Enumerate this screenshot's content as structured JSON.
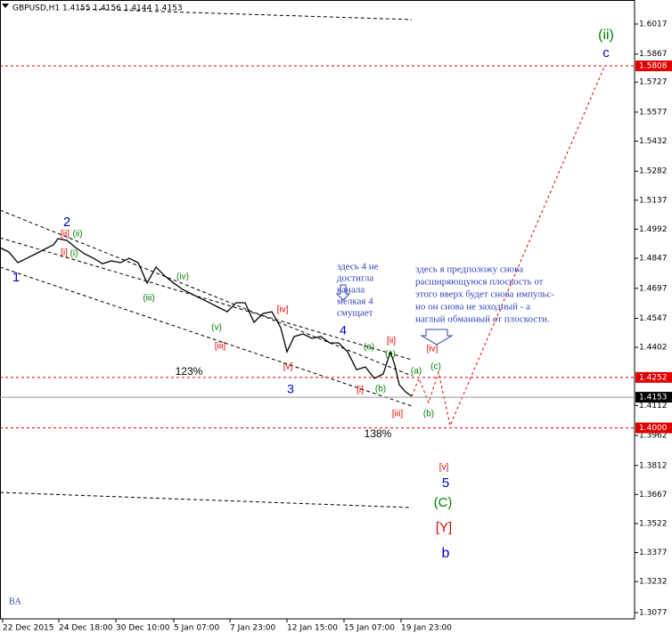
{
  "chart_data": {
    "type": "line",
    "title": "GBPUSD,H1  1.4155 1.4156 1.4144 1.4153",
    "watermark": "BA",
    "xlim": [
      0,
      712
    ],
    "xticks": [
      {
        "value": 3,
        "label": "22 Dec 2015"
      },
      {
        "value": 66,
        "label": "24 Dec 18:00"
      },
      {
        "value": 130,
        "label": "30 Dec 10:00"
      },
      {
        "value": 195,
        "label": "5 Jan 07:00"
      },
      {
        "value": 258,
        "label": "7 Jan 23:00"
      },
      {
        "value": 322,
        "label": "12 Jan 15:00"
      },
      {
        "value": 386,
        "label": "15 Jan 07:00"
      },
      {
        "value": 450,
        "label": "19 Jan 23:00"
      }
    ],
    "ylim": [
      1.3046,
      1.6137
    ],
    "yticks": [
      1.6017,
      1.5867,
      1.5727,
      1.5577,
      1.5432,
      1.5282,
      1.5137,
      1.4992,
      1.4847,
      1.4697,
      1.4547,
      1.4402,
      1.4112,
      1.3962,
      1.3812,
      1.3667,
      1.3522,
      1.3377,
      1.3232,
      1.3077
    ],
    "levels": [
      {
        "value": 1.5808,
        "color": "#e00000"
      },
      {
        "value": 1.4252,
        "color": "#e00000"
      },
      {
        "value": 1.4153,
        "color": "#999999"
      },
      {
        "value": {
          "value": 1.4,
          "label": "1.4000"
        },
        "color": "#e00000"
      }
    ],
    "series": [
      {
        "name": "GBPUSD",
        "color": "#000000",
        "x": [
          0,
          10,
          20,
          30,
          40,
          50,
          60,
          65,
          75,
          85,
          95,
          105,
          115,
          125,
          135,
          145,
          155,
          165,
          175,
          185,
          195,
          205,
          215,
          225,
          235,
          245,
          255,
          265,
          275,
          285,
          295,
          305,
          315,
          322,
          330,
          340,
          350,
          360,
          370,
          380,
          390,
          400,
          410,
          420,
          430,
          438,
          443,
          448,
          455,
          462
        ],
        "values": [
          1.49,
          1.4878,
          1.4825,
          1.4847,
          1.4869,
          1.4892,
          1.4914,
          1.4945,
          1.4936,
          1.49,
          1.4869,
          1.4847,
          1.482,
          1.4834,
          1.4825,
          1.4847,
          1.4825,
          1.4723,
          1.4803,
          1.4758,
          1.4723,
          1.4691,
          1.4669,
          1.4647,
          1.4625,
          1.4602,
          1.458,
          1.4625,
          1.4625,
          1.4527,
          1.4571,
          1.458,
          1.45,
          1.438,
          1.4456,
          1.4469,
          1.4447,
          1.4456,
          1.4424,
          1.4424,
          1.438,
          1.4291,
          1.4304,
          1.4247,
          1.4269,
          1.438,
          1.4313,
          1.4215,
          1.418,
          1.4158
        ]
      }
    ],
    "annotations": [
      {
        "text": "(ii)",
        "color": "#008000"
      },
      {
        "text": "c",
        "color": "#0000cc"
      },
      {
        "text": "2",
        "color": "#0000cc"
      },
      {
        "text": "1",
        "color": "#0000cc"
      },
      {
        "text": "[ii]",
        "color": "#e00000"
      },
      {
        "text": "(ii)",
        "color": "#008000"
      },
      {
        "text": "[i]",
        "color": "#e00000"
      },
      {
        "text": "(i)",
        "color": "#008000"
      },
      {
        "text": "(iv)",
        "color": "#008000"
      },
      {
        "text": "(iii)",
        "color": "#008000"
      },
      {
        "text": "(v)",
        "color": "#008000"
      },
      {
        "text": "[iii]",
        "color": "#e00000"
      },
      {
        "text": "[iv]",
        "color": "#e00000"
      },
      {
        "text": "[v]",
        "color": "#e00000"
      },
      {
        "text": "3",
        "color": "#0000cc"
      },
      {
        "text": "4",
        "color": "#0000cc"
      },
      {
        "text": "123%",
        "color": "#000000"
      },
      {
        "text": "(a)",
        "color": "#008000"
      },
      {
        "text": "[ii]",
        "color": "#e00000"
      },
      {
        "text": "(c)",
        "color": "#008000"
      },
      {
        "text": "(b)",
        "color": "#008000"
      },
      {
        "text": "[i]",
        "color": "#e00000"
      },
      {
        "text": "[iii]",
        "color": "#e00000"
      },
      {
        "text": "138%",
        "color": "#000000"
      },
      {
        "text": "(a)",
        "color": "#008000"
      },
      {
        "text": "(c)",
        "color": "#008000"
      },
      {
        "text": "(b)",
        "color": "#008000"
      },
      {
        "text": "[iv]",
        "color": "#e00000"
      },
      {
        "text": "[v]",
        "color": "#e00000"
      },
      {
        "text": "5",
        "color": "#0000cc"
      },
      {
        "text": "(C)",
        "color": "#008000"
      },
      {
        "text": "[Y]",
        "color": "#e00000"
      },
      {
        "text": "b",
        "color": "#0000cc"
      }
    ],
    "notes": [
      {
        "color": "#3344bb",
        "lines": [
          "здесь 4 не",
          "достигла",
          "канала",
          "мелкая 4",
          "смущает"
        ]
      },
      {
        "color": "#3344bb",
        "lines": [
          "здесь я предположу снова",
          "расширяющуюся плоскость от",
          "этого вверх будет снова импульс-",
          "но он снова не заходный - а",
          "наглый обманный от плоскости."
        ]
      }
    ]
  }
}
